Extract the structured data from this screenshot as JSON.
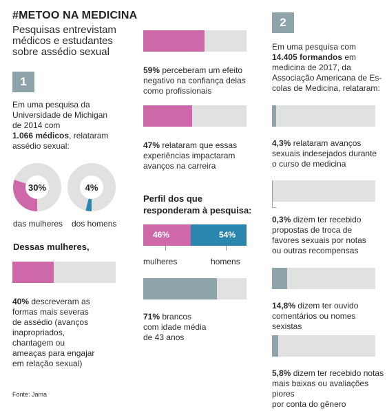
{
  "header": {
    "title": "#METOO NA MEDICINA",
    "subtitle": "Pesquisas entrevistam médicos e estudantes sobre assédio sexual"
  },
  "section1": {
    "number": "1",
    "intro_lines": [
      "Em uma pesquisa da",
      "Universidade de Michigan",
      "de 2014 com"
    ],
    "intro_bold": "1.066 médicos",
    "intro_rest": ", relataram",
    "intro_last": "assédio sexual:",
    "donuts": [
      {
        "value": 30,
        "label_value": "30%",
        "caption": "das mulheres",
        "color": "#cf68a8"
      },
      {
        "value": 4,
        "label_value": "4%",
        "caption": "dos homens",
        "color": "#2b86ad"
      }
    ],
    "women_heading": "Dessas mulheres,",
    "stat_bar": {
      "value": 40,
      "color": "#cf68a8"
    },
    "stat_bold": "40%",
    "stat_text_lines": [
      " descreveram as",
      "formas mais severas",
      "de assédio (avanços",
      "inapropriados,",
      "chantagem ou",
      "ameaças para engajar",
      "em relação sexual)"
    ]
  },
  "section_mid": {
    "items": [
      {
        "value": 59,
        "color": "#cf68a8",
        "bold": "59%",
        "lines": [
          " perceberam um efeito",
          "negativo na confiança delas",
          "como profissionais"
        ]
      },
      {
        "value": 47,
        "color": "#cf68a8",
        "bold": "47%",
        "lines": [
          " relataram que essas",
          "experiências impactaram",
          "avanços na carreira"
        ]
      }
    ],
    "profile_heading_lines": [
      "Perfil dos que",
      "responderam à pesquisa:"
    ],
    "gender_split": {
      "women": 46,
      "men": 54,
      "women_label": "46%",
      "men_label": "54%",
      "women_caption": "mulheres",
      "men_caption": "homens"
    },
    "white": {
      "value": 71,
      "bold": "71%",
      "lines": [
        " brancos",
        "com idade média",
        "de 43 anos"
      ]
    }
  },
  "section2": {
    "number": "2",
    "intro_line1": "Em uma pesquisa com",
    "intro_bold": "14.405 formandos",
    "intro_after_bold": " em",
    "intro_lines": [
      "medicina de 2017, da",
      "Associação Americana de Es-",
      "colas de Medicina, relataram:"
    ],
    "items": [
      {
        "value": 4.3,
        "bold": "4,3%",
        "lines": [
          " relataram avanços",
          "sexuais indesejados durante",
          "o curso de medicina"
        ]
      },
      {
        "value": 0.3,
        "bold": "0,3%",
        "lines": [
          " dizem ter recebido",
          "propostas de troca de",
          "favores sexuais por notas",
          "ou outras recompensas"
        ]
      },
      {
        "value": 14.8,
        "bold": "14,8%",
        "lines": [
          " dizem ter ouvido",
          "comentários ou nomes sexistas"
        ]
      },
      {
        "value": 5.8,
        "bold": "5,8%",
        "lines": [
          " dizem ter recebido notas",
          "mais baixas ou avaliações piores",
          "por conta do gênero"
        ]
      }
    ]
  },
  "source": "Fonte: Jama",
  "colors": {
    "pink": "#cf68a8",
    "teal": "#2b86ad",
    "slate": "#8fa3ab",
    "track": "#e1e1e1"
  }
}
